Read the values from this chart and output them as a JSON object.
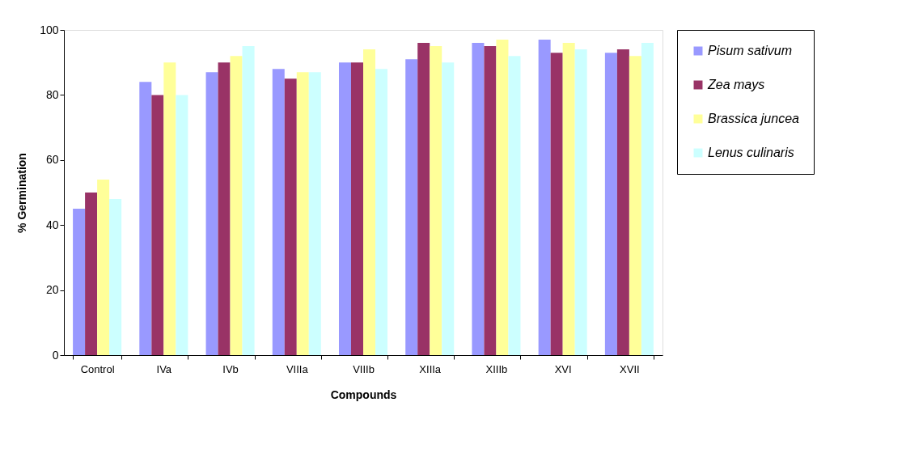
{
  "chart_data": {
    "type": "bar",
    "xlabel": "Compounds",
    "ylabel": "% Germination",
    "categories": [
      "Control",
      "IVa",
      "IVb",
      "VIIIa",
      "VIIIb",
      "XIIIa",
      "XIIIb",
      "XVI",
      "XVII"
    ],
    "series": [
      {
        "name": "Pisum sativum",
        "color": "#9999ff",
        "values": [
          45,
          84,
          87,
          88,
          90,
          91,
          96,
          97,
          93
        ]
      },
      {
        "name": "Zea mays",
        "color": "#993366",
        "values": [
          50,
          80,
          90,
          85,
          90,
          96,
          95,
          93,
          94
        ]
      },
      {
        "name": "Brassica juncea",
        "color": "#ffff99",
        "values": [
          54,
          90,
          92,
          87,
          94,
          95,
          97,
          96,
          92
        ]
      },
      {
        "name": "Lenus culinaris",
        "color": "#ccffff",
        "values": [
          48,
          80,
          95,
          87,
          88,
          90,
          92,
          94,
          96
        ]
      }
    ],
    "ylim": [
      0,
      100
    ],
    "yticks": [
      0,
      20,
      40,
      60,
      80,
      100
    ],
    "grid": false,
    "legend": "right"
  }
}
